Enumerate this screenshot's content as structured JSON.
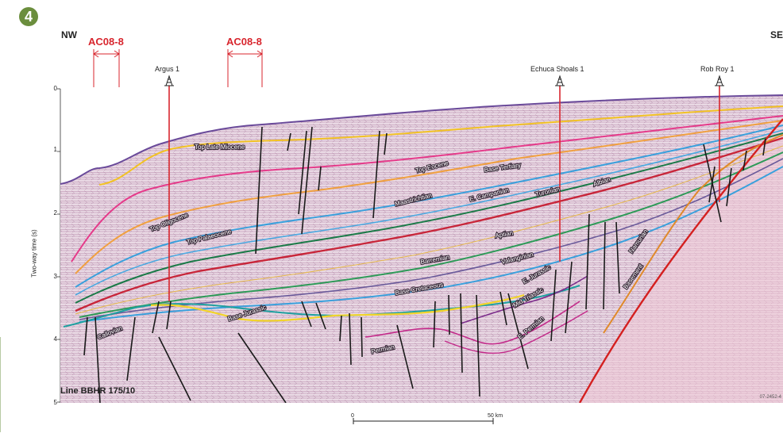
{
  "figure": {
    "badge": "4",
    "dir_left": "NW",
    "dir_right": "SE",
    "ac_labels": [
      "AC08-8",
      "AC08-8"
    ],
    "wells": [
      "Argus 1",
      "Echuca Shoals 1",
      "Rob Roy 1"
    ],
    "y_axis_label": "Two-way time (s)",
    "y_ticks": [
      "0",
      "1",
      "2",
      "3",
      "4",
      "5"
    ],
    "line_name": "Line BBHR 175/10",
    "scale_labels": [
      "0",
      "50 km"
    ],
    "credit": "07-2452-4"
  },
  "horizons": [
    {
      "name": "Top Late Miocene",
      "color": "#f2c224"
    },
    {
      "name": "Top Oligocene",
      "color": "#e53a8a"
    },
    {
      "name": "Top Eocene",
      "color": "#e02a6e"
    },
    {
      "name": "Base Tertiary",
      "color": "#3aa0dc"
    },
    {
      "name": "Top Palaeocene",
      "color": "#4aa8e0"
    },
    {
      "name": "Maastrichtian",
      "color": "#1b7a48"
    },
    {
      "name": "E. Campanian",
      "color": "#2e9a58"
    },
    {
      "name": "Turonian",
      "color": "#c8263a"
    },
    {
      "name": "Albian",
      "color": "#e08a2a"
    },
    {
      "name": "Aptian",
      "color": "#e6b84a"
    },
    {
      "name": "Barremian",
      "color": "#2e9a58"
    },
    {
      "name": "Valanginian",
      "color": "#6a5a9a"
    },
    {
      "name": "Base Cretaceous",
      "color": "#3aa0dc"
    },
    {
      "name": "E. Jurassic",
      "color": "#c32a8a"
    },
    {
      "name": "Mid Triassic",
      "color": "#7a2a8a"
    },
    {
      "name": "E. Permian",
      "color": "#c32a8a"
    },
    {
      "name": "Base Jurassic",
      "color": "#f2d42a"
    },
    {
      "name": "Callovian",
      "color": "#1fa0a0"
    },
    {
      "name": "Permian",
      "color": "#8a3a8a"
    },
    {
      "name": "Namurian",
      "color": "#e08a2a"
    },
    {
      "name": "Basement",
      "color": "#d42020"
    }
  ],
  "colors": {
    "seabed": "#6a4a9a",
    "seismic_base": "#e9d9e4",
    "fault": "#1a1a1a",
    "well_line": "#d8262e"
  }
}
